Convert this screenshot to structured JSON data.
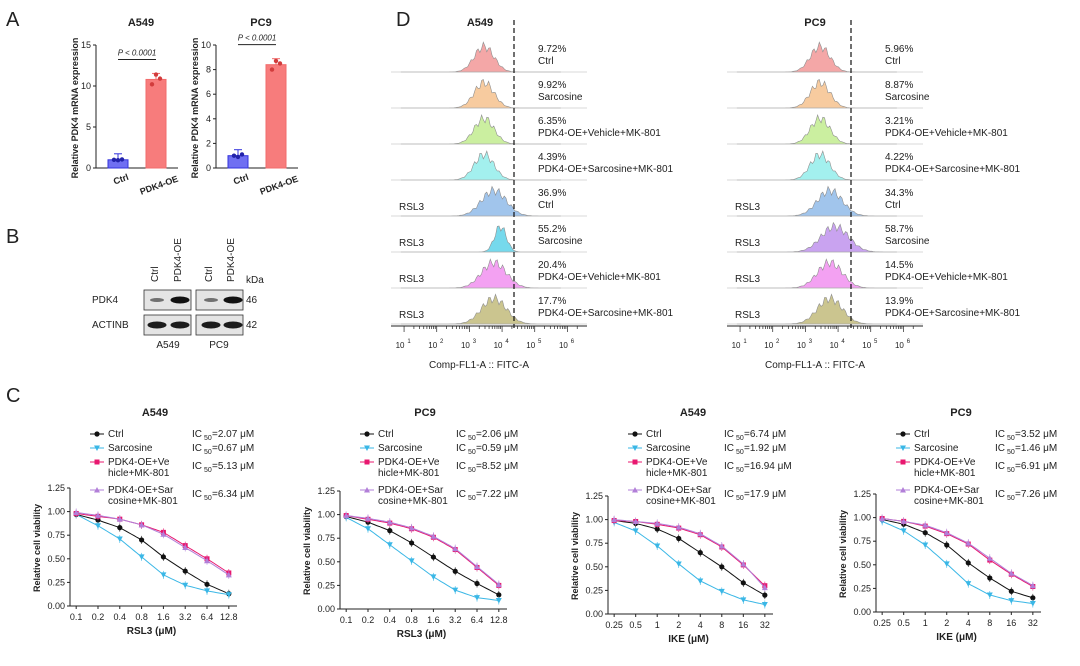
{
  "panel_letters": [
    "A",
    "B",
    "C",
    "D"
  ],
  "colors": {
    "ctrl": "#3333dd",
    "oe": "#f26b6b",
    "c_ctrl": "#111111",
    "c_sar": "#3ab7e6",
    "c_oeveh": "#e8186f",
    "c_oesar": "#b27fd8",
    "h_ctrl": "#f4a3a3",
    "h_sar": "#f7c99a",
    "h_oeveh": "#c9ef9b",
    "h_oesar": "#9ff0ee",
    "h_rsl3": "#9cc2ec",
    "h_sar_rsl3_a": "#6fd8ec",
    "h_sar_rsl3_p": "#c79ff0",
    "h_oeveh_rsl3": "#f39cf2",
    "h_oesar_rsl3": "#c9c28a"
  },
  "panelA": {
    "ylabel": "Relative PDK4 mRNA expression",
    "categories": [
      "Ctrl",
      "PDK4-OE"
    ],
    "charts": [
      {
        "title": "A549",
        "pvalue": "P < 0.0001",
        "ylim": [
          0,
          15
        ],
        "yticks": [
          0,
          5,
          10,
          15
        ],
        "values": [
          1.0,
          10.8
        ],
        "points": [
          [
            1.0,
            0.95,
            1.05
          ],
          [
            10.2,
            11.4,
            10.9
          ]
        ]
      },
      {
        "title": "PC9",
        "pvalue": "P < 0.0001",
        "ylim": [
          0,
          10
        ],
        "yticks": [
          0,
          2,
          4,
          6,
          8,
          10
        ],
        "values": [
          1.0,
          8.4
        ],
        "points": [
          [
            1.0,
            0.9,
            1.1
          ],
          [
            8.0,
            8.7,
            8.5
          ]
        ]
      }
    ]
  },
  "panelB": {
    "col_labels": [
      "Ctrl",
      "PDK4-OE",
      "Ctrl",
      "PDK4-OE"
    ],
    "kda_label": "kDa",
    "rows": [
      {
        "name": "PDK4",
        "kda": "46"
      },
      {
        "name": "ACTINB",
        "kda": "42"
      }
    ],
    "cells": [
      "A549",
      "PC9"
    ]
  },
  "panelD": {
    "xlabel": "Comp-FL1-A :: FITC-A",
    "xticks": [
      "10",
      "10",
      "10",
      "10",
      "10",
      "10"
    ],
    "xtick_exp": [
      "1",
      "2",
      "3",
      "4",
      "5",
      "6"
    ],
    "rsl3_label": "RSL3",
    "conditions": [
      "Ctrl",
      "Sarcosine",
      "PDK4-OE+Vehicle+MK-801",
      "PDK4-OE+Sarcosine+MK-801",
      "Ctrl",
      "Sarcosine",
      "PDK4-OE+Vehicle+MK-801",
      "PDK4-OE+Sarcosine+MK-801"
    ],
    "panels": [
      {
        "title": "A549",
        "percents": [
          "9.72%",
          "9.92%",
          "6.35%",
          "4.39%",
          "36.9%",
          "55.2%",
          "20.4%",
          "17.7%"
        ]
      },
      {
        "title": "PC9",
        "percents": [
          "5.96%",
          "8.87%",
          "3.21%",
          "4.22%",
          "34.3%",
          "58.7%",
          "14.5%",
          "13.9%"
        ]
      }
    ]
  },
  "panelC": {
    "ylabel": "Relative cell viability",
    "yticks": [
      "0.00",
      "0.25",
      "0.50",
      "0.75",
      "1.00",
      "1.25"
    ],
    "legend": [
      "Ctrl",
      "Sarcosine",
      "PDK4-OE+Ve hicle+MK-801",
      "PDK4-OE+Sar cosine+MK-801"
    ],
    "legend_lines": [
      [
        "Ctrl"
      ],
      [
        "Sarcosine"
      ],
      [
        "PDK4-OE+Ve",
        "hicle+MK-801"
      ],
      [
        "PDK4-OE+Sar",
        "cosine+MK-801"
      ]
    ],
    "ic50_prefix": "IC",
    "ic50_sub": "50"
  },
  "chart_data": [
    {
      "type": "line",
      "title": "A549",
      "xlabel": "RSL3 (μM)",
      "ylabel": "Relative cell viability",
      "x": [
        0.1,
        0.2,
        0.4,
        0.8,
        1.6,
        3.2,
        6.4,
        12.8
      ],
      "xticks": [
        "0.1",
        "0.2",
        "0.4",
        "0.8",
        "1.6",
        "3.2",
        "6.4",
        "12.8"
      ],
      "ylim": [
        0,
        1.25
      ],
      "ic50": [
        "=2.07 μM",
        "=0.67 μM",
        "=5.13 μM",
        "=6.34 μM"
      ],
      "series": [
        {
          "name": "Ctrl",
          "values": [
            0.97,
            0.91,
            0.83,
            0.7,
            0.52,
            0.37,
            0.23,
            0.13
          ]
        },
        {
          "name": "Sarcosine",
          "values": [
            0.97,
            0.85,
            0.71,
            0.52,
            0.33,
            0.22,
            0.16,
            0.12
          ]
        },
        {
          "name": "PDK4-OE+Vehicle+MK-801",
          "values": [
            0.98,
            0.95,
            0.92,
            0.86,
            0.78,
            0.64,
            0.5,
            0.35
          ]
        },
        {
          "name": "PDK4-OE+Sarcosine+MK-801",
          "values": [
            0.99,
            0.96,
            0.92,
            0.86,
            0.76,
            0.62,
            0.48,
            0.33
          ]
        }
      ]
    },
    {
      "type": "line",
      "title": "PC9",
      "xlabel": "RSL3 (μM)",
      "ylabel": "Relative cell viability",
      "x": [
        0.1,
        0.2,
        0.4,
        0.8,
        1.6,
        3.2,
        6.4,
        12.8
      ],
      "xticks": [
        "0.1",
        "0.2",
        "0.4",
        "0.8",
        "1.6",
        "3.2",
        "6.4",
        "12.8"
      ],
      "ylim": [
        0,
        1.25
      ],
      "ic50": [
        "=2.06 μM",
        "=0.59 μM",
        "=8.52 μM",
        "=7.22 μM"
      ],
      "series": [
        {
          "name": "Ctrl",
          "values": [
            0.98,
            0.92,
            0.83,
            0.7,
            0.55,
            0.4,
            0.27,
            0.15
          ]
        },
        {
          "name": "Sarcosine",
          "values": [
            0.97,
            0.85,
            0.68,
            0.51,
            0.34,
            0.2,
            0.12,
            0.09
          ]
        },
        {
          "name": "PDK4-OE+Vehicle+MK-801",
          "values": [
            0.99,
            0.95,
            0.91,
            0.85,
            0.76,
            0.63,
            0.44,
            0.25
          ]
        },
        {
          "name": "PDK4-OE+Sarcosine+MK-801",
          "values": [
            0.99,
            0.96,
            0.92,
            0.86,
            0.77,
            0.64,
            0.45,
            0.26
          ]
        }
      ]
    },
    {
      "type": "line",
      "title": "A549",
      "xlabel": "IKE (μM)",
      "ylabel": "Relative cell viability",
      "x": [
        0.25,
        0.5,
        1,
        2,
        4,
        8,
        16,
        32
      ],
      "xticks": [
        "0.25",
        "0.5",
        "1",
        "2",
        "4",
        "8",
        "16",
        "32"
      ],
      "ylim": [
        0,
        1.25
      ],
      "ic50": [
        "=6.74 μM",
        "=1.92 μM",
        "=16.94 μM",
        "=17.9 μM"
      ],
      "series": [
        {
          "name": "Ctrl",
          "values": [
            0.99,
            0.96,
            0.9,
            0.8,
            0.65,
            0.5,
            0.33,
            0.2
          ]
        },
        {
          "name": "Sarcosine",
          "values": [
            0.97,
            0.88,
            0.72,
            0.53,
            0.35,
            0.24,
            0.15,
            0.1
          ]
        },
        {
          "name": "PDK4-OE+Vehicle+MK-801",
          "values": [
            0.99,
            0.98,
            0.95,
            0.91,
            0.84,
            0.71,
            0.52,
            0.3
          ]
        },
        {
          "name": "PDK4-OE+Sarcosine+MK-801",
          "values": [
            1.0,
            0.98,
            0.96,
            0.92,
            0.85,
            0.72,
            0.53,
            0.28
          ]
        }
      ]
    },
    {
      "type": "line",
      "title": "PC9",
      "xlabel": "IKE (μM)",
      "ylabel": "Relative cell viability",
      "x": [
        0.25,
        0.5,
        1,
        2,
        4,
        8,
        16,
        32
      ],
      "xticks": [
        "0.25",
        "0.5",
        "1",
        "2",
        "4",
        "8",
        "16",
        "32"
      ],
      "ylim": [
        0,
        1.25
      ],
      "ic50": [
        "=3.52 μM",
        "=1.46 μM",
        "=6.91 μM",
        "=7.26 μM"
      ],
      "series": [
        {
          "name": "Ctrl",
          "values": [
            0.98,
            0.93,
            0.84,
            0.71,
            0.52,
            0.36,
            0.22,
            0.15
          ]
        },
        {
          "name": "Sarcosine",
          "values": [
            0.96,
            0.86,
            0.71,
            0.51,
            0.3,
            0.18,
            0.12,
            0.09
          ]
        },
        {
          "name": "PDK4-OE+Vehicle+MK-801",
          "values": [
            0.99,
            0.96,
            0.91,
            0.83,
            0.72,
            0.55,
            0.4,
            0.27
          ]
        },
        {
          "name": "PDK4-OE+Sarcosine+MK-801",
          "values": [
            0.99,
            0.96,
            0.92,
            0.84,
            0.73,
            0.57,
            0.41,
            0.28
          ]
        }
      ]
    }
  ]
}
